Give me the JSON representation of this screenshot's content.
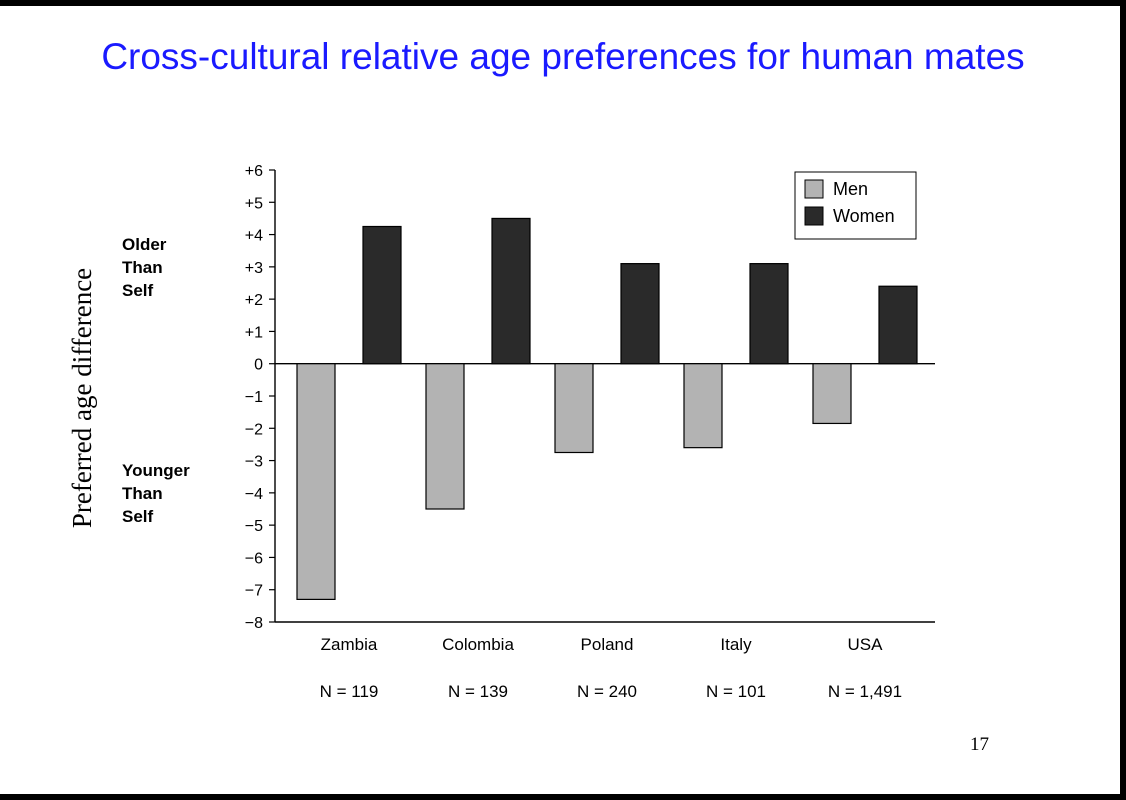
{
  "slide": {
    "title": "Cross-cultural relative age preferences for human mates",
    "page_number": "17"
  },
  "chart_data": {
    "type": "bar",
    "categories": [
      "Zambia",
      "Colombia",
      "Poland",
      "Italy",
      "USA"
    ],
    "sample_sizes": [
      "N = 119",
      "N = 139",
      "N = 240",
      "N = 101",
      "N = 1,491"
    ],
    "series": [
      {
        "name": "Men",
        "values": [
          -7.3,
          -4.5,
          -2.75,
          -2.6,
          -1.85
        ],
        "color": "#b3b3b3"
      },
      {
        "name": "Women",
        "values": [
          4.25,
          4.5,
          3.1,
          3.1,
          2.4
        ],
        "color": "#2a2a2a"
      }
    ],
    "ylabel": "Preferred age difference",
    "ylim": [
      -8,
      6
    ],
    "yticks": [
      {
        "value": 6,
        "label": "+6"
      },
      {
        "value": 5,
        "label": "+5"
      },
      {
        "value": 4,
        "label": "+4"
      },
      {
        "value": 3,
        "label": "+3"
      },
      {
        "value": 2,
        "label": "+2"
      },
      {
        "value": 1,
        "label": "+1"
      },
      {
        "value": 0,
        "label": "0"
      },
      {
        "value": -1,
        "label": "−1"
      },
      {
        "value": -2,
        "label": "−2"
      },
      {
        "value": -3,
        "label": "−3"
      },
      {
        "value": -4,
        "label": "−4"
      },
      {
        "value": -5,
        "label": "−5"
      },
      {
        "value": -6,
        "label": "−6"
      },
      {
        "value": -7,
        "label": "−7"
      },
      {
        "value": -8,
        "label": "−8"
      }
    ],
    "annotations": [
      {
        "lines": [
          "Older",
          "Than",
          "Self"
        ],
        "at_value": 3
      },
      {
        "lines": [
          "Younger",
          "Than",
          "Self"
        ],
        "at_value": -4
      }
    ],
    "legend_position": "top-right",
    "grid": false
  }
}
